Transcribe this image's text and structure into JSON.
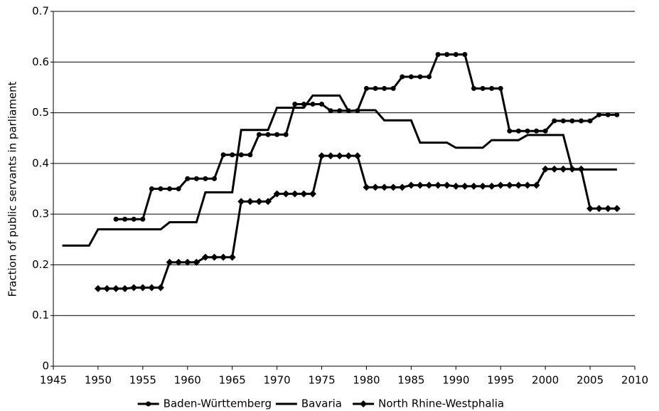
{
  "chart_data": {
    "type": "line",
    "y_label": "Fraction of public servants in parliament",
    "xlim": [
      1945,
      2010
    ],
    "xticks": [
      1945,
      1950,
      1955,
      1960,
      1965,
      1970,
      1975,
      1980,
      1985,
      1990,
      1995,
      2000,
      2005,
      2010
    ],
    "ylim": [
      0,
      0.7
    ],
    "yticks": [
      0,
      0.1,
      0.2,
      0.3,
      0.4,
      0.5,
      0.6,
      0.7
    ],
    "grid": true,
    "legend": "bottom",
    "series": [
      {
        "name": "Baden-Württemberg",
        "color": "#000000",
        "marker": "circle",
        "x": [
          1952,
          1953,
          1954,
          1955,
          1956,
          1957,
          1958,
          1959,
          1960,
          1961,
          1962,
          1963,
          1964,
          1965,
          1966,
          1967,
          1968,
          1969,
          1970,
          1971,
          1972,
          1973,
          1974,
          1975,
          1976,
          1977,
          1978,
          1979,
          1980,
          1981,
          1982,
          1983,
          1984,
          1985,
          1986,
          1987,
          1988,
          1989,
          1990,
          1991,
          1992,
          1993,
          1994,
          1995,
          1996,
          1997,
          1998,
          1999,
          2000,
          2001,
          2002,
          2003,
          2004,
          2005,
          2006,
          2007,
          2008
        ],
        "values": [
          0.29,
          0.29,
          0.29,
          0.29,
          0.35,
          0.35,
          0.35,
          0.35,
          0.37,
          0.37,
          0.37,
          0.37,
          0.417,
          0.417,
          0.417,
          0.417,
          0.457,
          0.457,
          0.457,
          0.457,
          0.517,
          0.517,
          0.517,
          0.517,
          0.504,
          0.504,
          0.504,
          0.504,
          0.548,
          0.548,
          0.548,
          0.548,
          0.571,
          0.571,
          0.571,
          0.571,
          0.615,
          0.615,
          0.615,
          0.615,
          0.548,
          0.548,
          0.548,
          0.548,
          0.464,
          0.464,
          0.464,
          0.464,
          0.464,
          0.484,
          0.484,
          0.484,
          0.484,
          0.484,
          0.496,
          0.496,
          0.496
        ]
      },
      {
        "name": "Bavaria",
        "color": "#000000",
        "marker": "none",
        "x": [
          1946,
          1947,
          1948,
          1949,
          1950,
          1951,
          1952,
          1953,
          1954,
          1955,
          1956,
          1957,
          1958,
          1959,
          1960,
          1961,
          1962,
          1963,
          1964,
          1965,
          1966,
          1967,
          1968,
          1969,
          1970,
          1971,
          1972,
          1973,
          1974,
          1975,
          1976,
          1977,
          1978,
          1979,
          1980,
          1981,
          1982,
          1983,
          1984,
          1985,
          1986,
          1987,
          1988,
          1989,
          1990,
          1991,
          1992,
          1993,
          1994,
          1995,
          1996,
          1997,
          1998,
          1999,
          2000,
          2001,
          2002,
          2003,
          2004,
          2005,
          2006,
          2007,
          2008
        ],
        "values": [
          0.238,
          0.238,
          0.238,
          0.238,
          0.27,
          0.27,
          0.27,
          0.27,
          0.27,
          0.27,
          0.27,
          0.27,
          0.284,
          0.284,
          0.284,
          0.284,
          0.343,
          0.343,
          0.343,
          0.343,
          0.466,
          0.466,
          0.466,
          0.466,
          0.51,
          0.51,
          0.51,
          0.51,
          0.534,
          0.534,
          0.534,
          0.534,
          0.503,
          0.505,
          0.505,
          0.505,
          0.485,
          0.485,
          0.485,
          0.485,
          0.441,
          0.441,
          0.441,
          0.441,
          0.431,
          0.431,
          0.431,
          0.431,
          0.446,
          0.446,
          0.446,
          0.446,
          0.456,
          0.456,
          0.456,
          0.456,
          0.456,
          0.388,
          0.388,
          0.388,
          0.388,
          0.388,
          0.388
        ]
      },
      {
        "name": "North Rhine-Westphalia",
        "color": "#000000",
        "marker": "diamond",
        "x": [
          1950,
          1951,
          1952,
          1953,
          1954,
          1955,
          1956,
          1957,
          1958,
          1959,
          1960,
          1961,
          1962,
          1963,
          1964,
          1965,
          1966,
          1967,
          1968,
          1969,
          1970,
          1971,
          1972,
          1973,
          1974,
          1975,
          1976,
          1977,
          1978,
          1979,
          1980,
          1981,
          1982,
          1983,
          1984,
          1985,
          1986,
          1987,
          1988,
          1989,
          1990,
          1991,
          1992,
          1993,
          1994,
          1995,
          1996,
          1997,
          1998,
          1999,
          2000,
          2001,
          2002,
          2003,
          2004,
          2005,
          2006,
          2007,
          2008
        ],
        "values": [
          0.153,
          0.153,
          0.153,
          0.153,
          0.155,
          0.155,
          0.155,
          0.155,
          0.205,
          0.205,
          0.205,
          0.205,
          0.215,
          0.215,
          0.215,
          0.215,
          0.325,
          0.325,
          0.325,
          0.325,
          0.34,
          0.34,
          0.34,
          0.34,
          0.34,
          0.415,
          0.415,
          0.415,
          0.415,
          0.415,
          0.353,
          0.353,
          0.353,
          0.353,
          0.353,
          0.357,
          0.357,
          0.357,
          0.357,
          0.357,
          0.355,
          0.355,
          0.355,
          0.355,
          0.355,
          0.357,
          0.357,
          0.357,
          0.357,
          0.357,
          0.389,
          0.389,
          0.389,
          0.389,
          0.389,
          0.311,
          0.311,
          0.311,
          0.311
        ]
      }
    ]
  }
}
